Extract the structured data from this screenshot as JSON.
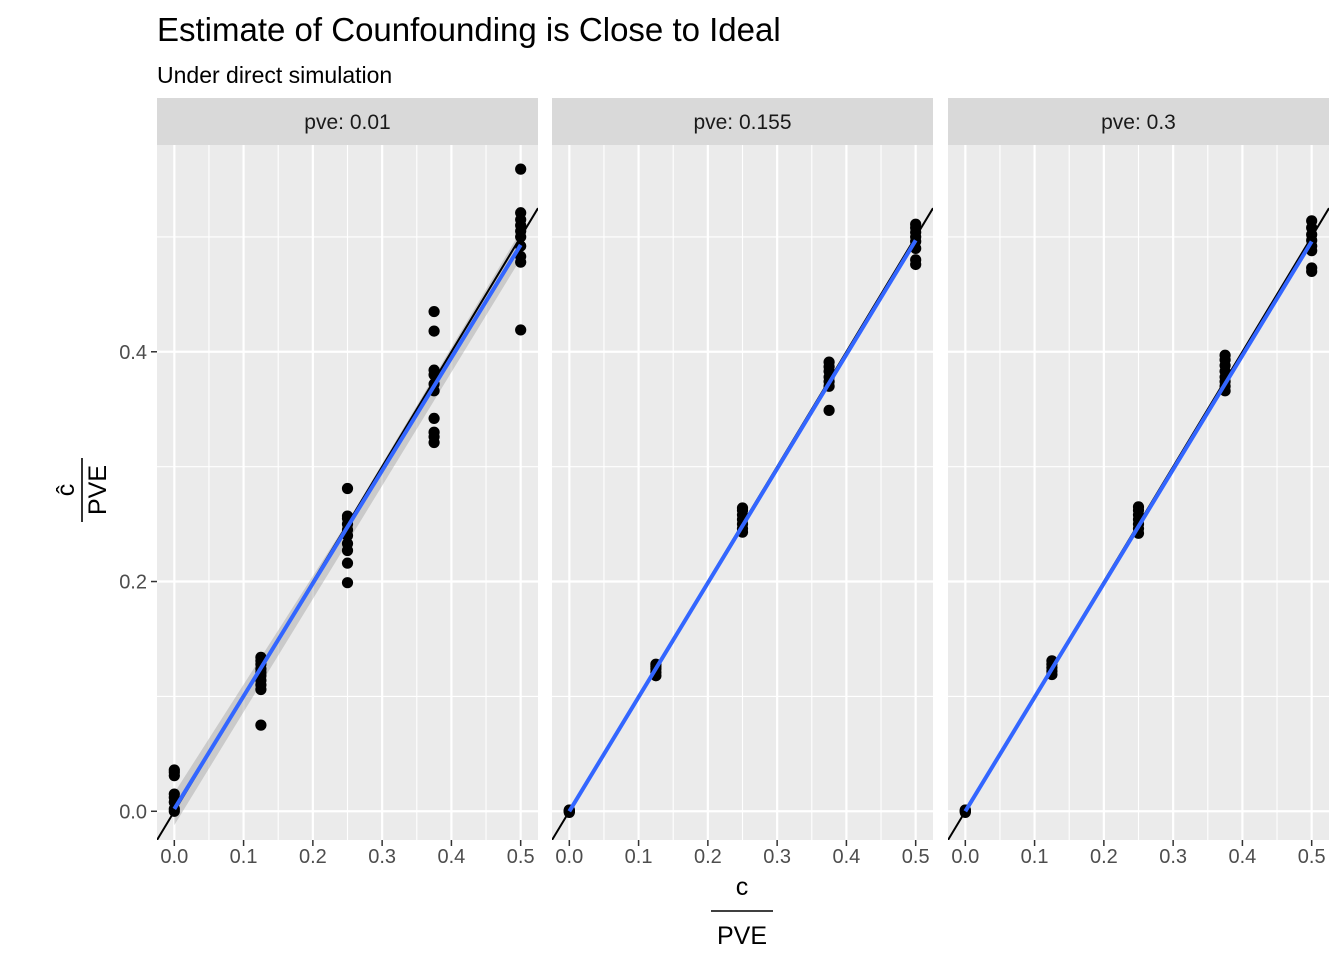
{
  "chart_data": {
    "type": "scatter",
    "title": "Estimate of Counfounding is Close to Ideal",
    "subtitle": "Under direct simulation",
    "xlabel": {
      "numerator": "c",
      "denominator": "PVE"
    },
    "ylabel": {
      "numerator": "ĉ",
      "denominator": "PVE"
    },
    "xlim": [
      -0.025,
      0.525
    ],
    "ylim": [
      -0.025,
      0.58
    ],
    "x_ticks": [
      0.0,
      0.1,
      0.2,
      0.3,
      0.4,
      0.5
    ],
    "x_tick_labels": [
      "0.0",
      "0.1",
      "0.2",
      "0.3",
      "0.4",
      "0.5"
    ],
    "y_ticks": [
      0.0,
      0.2,
      0.4
    ],
    "y_tick_labels": [
      "0.0",
      "0.2",
      "0.4"
    ],
    "grid": true,
    "reference_line": {
      "slope": 1,
      "intercept": 0,
      "color": "#000000"
    },
    "fit_color": "#3366FF",
    "point_color": "#000000",
    "panels": [
      {
        "strip": "pve: 0.01",
        "fit": {
          "x": [
            0.0,
            0.5
          ],
          "y": [
            0.002,
            0.493
          ]
        },
        "band": {
          "x": [
            0.0,
            0.25,
            0.5
          ],
          "upper": [
            0.016,
            0.252,
            0.505
          ],
          "lower": [
            -0.012,
            0.234,
            0.481
          ]
        },
        "points": [
          {
            "x": 0.0,
            "y": 0.0
          },
          {
            "x": 0.0,
            "y": 0.002
          },
          {
            "x": 0.0,
            "y": 0.008
          },
          {
            "x": 0.0,
            "y": 0.012
          },
          {
            "x": 0.0,
            "y": 0.015
          },
          {
            "x": 0.0,
            "y": 0.031
          },
          {
            "x": 0.0,
            "y": 0.034
          },
          {
            "x": 0.0,
            "y": 0.036
          },
          {
            "x": 0.125,
            "y": 0.075
          },
          {
            "x": 0.125,
            "y": 0.106
          },
          {
            "x": 0.125,
            "y": 0.11
          },
          {
            "x": 0.125,
            "y": 0.114
          },
          {
            "x": 0.125,
            "y": 0.118
          },
          {
            "x": 0.125,
            "y": 0.121
          },
          {
            "x": 0.125,
            "y": 0.124
          },
          {
            "x": 0.125,
            "y": 0.128
          },
          {
            "x": 0.125,
            "y": 0.131
          },
          {
            "x": 0.125,
            "y": 0.134
          },
          {
            "x": 0.25,
            "y": 0.199
          },
          {
            "x": 0.25,
            "y": 0.216
          },
          {
            "x": 0.25,
            "y": 0.227
          },
          {
            "x": 0.25,
            "y": 0.233
          },
          {
            "x": 0.25,
            "y": 0.24
          },
          {
            "x": 0.25,
            "y": 0.245
          },
          {
            "x": 0.25,
            "y": 0.25
          },
          {
            "x": 0.25,
            "y": 0.255
          },
          {
            "x": 0.25,
            "y": 0.257
          },
          {
            "x": 0.25,
            "y": 0.281
          },
          {
            "x": 0.375,
            "y": 0.321
          },
          {
            "x": 0.375,
            "y": 0.326
          },
          {
            "x": 0.375,
            "y": 0.33
          },
          {
            "x": 0.375,
            "y": 0.342
          },
          {
            "x": 0.375,
            "y": 0.366
          },
          {
            "x": 0.375,
            "y": 0.372
          },
          {
            "x": 0.375,
            "y": 0.38
          },
          {
            "x": 0.375,
            "y": 0.384
          },
          {
            "x": 0.375,
            "y": 0.418
          },
          {
            "x": 0.375,
            "y": 0.435
          },
          {
            "x": 0.5,
            "y": 0.419
          },
          {
            "x": 0.5,
            "y": 0.478
          },
          {
            "x": 0.5,
            "y": 0.483
          },
          {
            "x": 0.5,
            "y": 0.492
          },
          {
            "x": 0.5,
            "y": 0.5
          },
          {
            "x": 0.5,
            "y": 0.505
          },
          {
            "x": 0.5,
            "y": 0.51
          },
          {
            "x": 0.5,
            "y": 0.515
          },
          {
            "x": 0.5,
            "y": 0.521
          },
          {
            "x": 0.5,
            "y": 0.559
          }
        ]
      },
      {
        "strip": "pve: 0.155",
        "fit": {
          "x": [
            0.0,
            0.5
          ],
          "y": [
            0.0,
            0.497
          ]
        },
        "band": {
          "x": [
            0.0,
            0.25,
            0.5
          ],
          "upper": [
            0.002,
            0.25,
            0.499
          ],
          "lower": [
            -0.002,
            0.246,
            0.495
          ]
        },
        "points": [
          {
            "x": 0.0,
            "y": 0.0
          },
          {
            "x": 0.0,
            "y": 0.001
          },
          {
            "x": 0.0,
            "y": 0.0
          },
          {
            "x": 0.0,
            "y": -0.001
          },
          {
            "x": 0.0,
            "y": 0.001
          },
          {
            "x": 0.0,
            "y": 0.0
          },
          {
            "x": 0.125,
            "y": 0.118
          },
          {
            "x": 0.125,
            "y": 0.121
          },
          {
            "x": 0.125,
            "y": 0.124
          },
          {
            "x": 0.125,
            "y": 0.126
          },
          {
            "x": 0.125,
            "y": 0.128
          },
          {
            "x": 0.25,
            "y": 0.243
          },
          {
            "x": 0.25,
            "y": 0.246
          },
          {
            "x": 0.25,
            "y": 0.25
          },
          {
            "x": 0.25,
            "y": 0.254
          },
          {
            "x": 0.25,
            "y": 0.258
          },
          {
            "x": 0.25,
            "y": 0.262
          },
          {
            "x": 0.25,
            "y": 0.264
          },
          {
            "x": 0.375,
            "y": 0.349
          },
          {
            "x": 0.375,
            "y": 0.37
          },
          {
            "x": 0.375,
            "y": 0.374
          },
          {
            "x": 0.375,
            "y": 0.378
          },
          {
            "x": 0.375,
            "y": 0.383
          },
          {
            "x": 0.375,
            "y": 0.387
          },
          {
            "x": 0.375,
            "y": 0.391
          },
          {
            "x": 0.5,
            "y": 0.476
          },
          {
            "x": 0.5,
            "y": 0.48
          },
          {
            "x": 0.5,
            "y": 0.49
          },
          {
            "x": 0.5,
            "y": 0.496
          },
          {
            "x": 0.5,
            "y": 0.5
          },
          {
            "x": 0.5,
            "y": 0.504
          },
          {
            "x": 0.5,
            "y": 0.508
          },
          {
            "x": 0.5,
            "y": 0.511
          }
        ]
      },
      {
        "strip": "pve: 0.3",
        "fit": {
          "x": [
            0.0,
            0.5
          ],
          "y": [
            0.0,
            0.496
          ]
        },
        "band": {
          "x": [
            0.0,
            0.25,
            0.5
          ],
          "upper": [
            0.002,
            0.25,
            0.498
          ],
          "lower": [
            -0.002,
            0.246,
            0.494
          ]
        },
        "points": [
          {
            "x": 0.0,
            "y": 0.0
          },
          {
            "x": 0.0,
            "y": 0.001
          },
          {
            "x": 0.0,
            "y": -0.001
          },
          {
            "x": 0.0,
            "y": 0.0
          },
          {
            "x": 0.0,
            "y": 0.001
          },
          {
            "x": 0.125,
            "y": 0.119
          },
          {
            "x": 0.125,
            "y": 0.122
          },
          {
            "x": 0.125,
            "y": 0.125
          },
          {
            "x": 0.125,
            "y": 0.128
          },
          {
            "x": 0.125,
            "y": 0.131
          },
          {
            "x": 0.25,
            "y": 0.242
          },
          {
            "x": 0.25,
            "y": 0.246
          },
          {
            "x": 0.25,
            "y": 0.25
          },
          {
            "x": 0.25,
            "y": 0.254
          },
          {
            "x": 0.25,
            "y": 0.258
          },
          {
            "x": 0.25,
            "y": 0.262
          },
          {
            "x": 0.25,
            "y": 0.265
          },
          {
            "x": 0.375,
            "y": 0.366
          },
          {
            "x": 0.375,
            "y": 0.37
          },
          {
            "x": 0.375,
            "y": 0.374
          },
          {
            "x": 0.375,
            "y": 0.378
          },
          {
            "x": 0.375,
            "y": 0.383
          },
          {
            "x": 0.375,
            "y": 0.388
          },
          {
            "x": 0.375,
            "y": 0.393
          },
          {
            "x": 0.375,
            "y": 0.397
          },
          {
            "x": 0.5,
            "y": 0.47
          },
          {
            "x": 0.5,
            "y": 0.473
          },
          {
            "x": 0.5,
            "y": 0.488
          },
          {
            "x": 0.5,
            "y": 0.492
          },
          {
            "x": 0.5,
            "y": 0.497
          },
          {
            "x": 0.5,
            "y": 0.502
          },
          {
            "x": 0.5,
            "y": 0.508
          },
          {
            "x": 0.5,
            "y": 0.514
          }
        ]
      }
    ]
  }
}
